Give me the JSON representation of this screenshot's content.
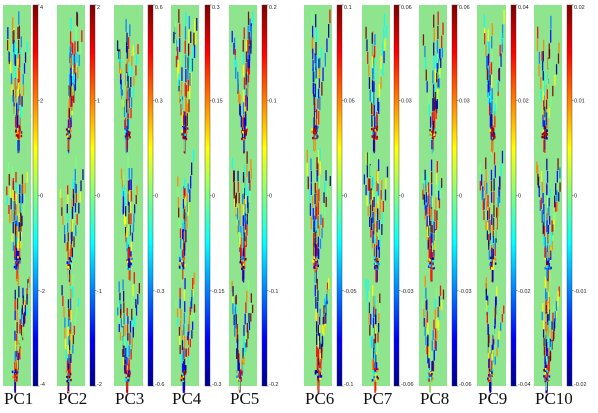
{
  "panels": [
    {
      "label": "PC1",
      "ticks": [
        "4",
        "2",
        "0",
        "-2",
        "-4"
      ]
    },
    {
      "label": "PC2",
      "ticks": [
        "2",
        "1",
        "0",
        "-1",
        "-2"
      ]
    },
    {
      "label": "PC3",
      "ticks": [
        "0.6",
        "0.3",
        "0",
        "-0.3",
        "-0.6"
      ]
    },
    {
      "label": "PC4",
      "ticks": [
        "0.3",
        "0.15",
        "0",
        "-0.15",
        "-0.3"
      ]
    },
    {
      "label": "PC5",
      "ticks": [
        "0.2",
        "0.1",
        "0",
        "-0.1",
        "-0.2"
      ]
    },
    {
      "label": "PC6",
      "ticks": [
        "0.1",
        "0.05",
        "0",
        "-0.05",
        "-0.1"
      ]
    },
    {
      "label": "PC7",
      "ticks": [
        "0.06",
        "0.03",
        "0",
        "-0.03",
        "-0.06"
      ]
    },
    {
      "label": "PC8",
      "ticks": [
        "0.06",
        "0.03",
        "0",
        "-0.03",
        "-0.06"
      ]
    },
    {
      "label": "PC9",
      "ticks": [
        "0.04",
        "0.02",
        "0",
        "-0.02",
        "-0.04"
      ]
    },
    {
      "label": "PC10",
      "ticks": [
        "0.02",
        "0.01",
        "0",
        "-0.01",
        "-0.02"
      ]
    }
  ],
  "colors": {
    "background": "#8ee58e",
    "colormap": [
      "#00008f",
      "#0000ff",
      "#00ffff",
      "#ffff00",
      "#ff0000",
      "#800000"
    ]
  }
}
